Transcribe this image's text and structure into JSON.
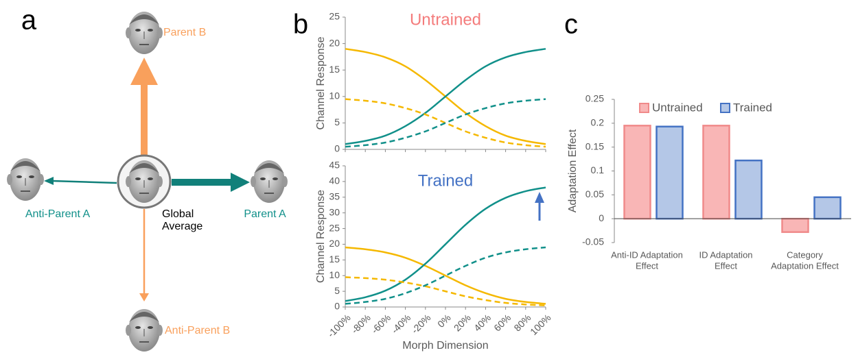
{
  "diagram": {
    "panel_label": "a",
    "nodes": [
      {
        "label": [
          "Parent B"
        ]
      },
      {
        "label": [
          "Anti-Parent A"
        ]
      },
      {
        "label": [
          "Global",
          "Average"
        ]
      },
      {
        "label": [
          "Parent A"
        ]
      },
      {
        "label": [
          "Anti-Parent B"
        ]
      }
    ]
  },
  "chart_data": [
    {
      "type": "line",
      "panel_label": "b",
      "title": "Untrained",
      "title_color": "#f47c7c",
      "ylabel": "Channel Response",
      "x": [
        -100,
        -80,
        -60,
        -40,
        -20,
        0,
        20,
        40,
        60,
        80,
        100
      ],
      "xlim": [
        -100,
        100
      ],
      "ylim": [
        0,
        25
      ],
      "yticks": [
        0,
        5,
        10,
        15,
        20,
        25
      ],
      "series": [
        {
          "color": "#f5b800",
          "dash": false,
          "values": [
            19.0,
            18.4,
            17.4,
            15.7,
            13.1,
            10.0,
            6.9,
            4.4,
            2.6,
            1.6,
            1.0
          ]
        },
        {
          "color": "#11908a",
          "dash": false,
          "values": [
            1.0,
            1.6,
            2.6,
            4.4,
            6.9,
            10.0,
            13.1,
            15.7,
            17.4,
            18.4,
            19.0
          ]
        },
        {
          "color": "#f5b800",
          "dash": true,
          "values": [
            9.5,
            9.2,
            8.7,
            7.8,
            6.6,
            5.0,
            3.4,
            2.2,
            1.3,
            0.8,
            0.5
          ]
        },
        {
          "color": "#11908a",
          "dash": true,
          "values": [
            0.5,
            0.8,
            1.3,
            2.2,
            3.4,
            5.0,
            6.6,
            7.8,
            8.7,
            9.2,
            9.5
          ]
        }
      ]
    },
    {
      "type": "line",
      "title": "Trained",
      "title_color": "#4472c4",
      "ylabel": "Channel Response",
      "xlabel": "Morph Dimension",
      "x": [
        -100,
        -80,
        -60,
        -40,
        -20,
        0,
        20,
        40,
        60,
        80,
        100
      ],
      "xlim": [
        -100,
        100
      ],
      "xticks": [
        {
          "value": -100,
          "label": "-100%"
        },
        {
          "value": -80,
          "label": "-80%"
        },
        {
          "value": -60,
          "label": "-60%"
        },
        {
          "value": -40,
          "label": "-40%"
        },
        {
          "value": -20,
          "label": "-20%"
        },
        {
          "value": 0,
          "label": "0%"
        },
        {
          "value": 20,
          "label": "20%"
        },
        {
          "value": 40,
          "label": "40%"
        },
        {
          "value": 60,
          "label": "60%"
        },
        {
          "value": 80,
          "label": "80%"
        },
        {
          "value": 100,
          "label": "100%"
        }
      ],
      "ylim": [
        0,
        45
      ],
      "yticks": [
        0,
        5,
        10,
        15,
        20,
        25,
        30,
        35,
        40,
        45
      ],
      "series": [
        {
          "color": "#f5b800",
          "dash": false,
          "values": [
            19.0,
            18.4,
            17.4,
            15.7,
            13.1,
            10.0,
            6.9,
            4.4,
            2.6,
            1.6,
            1.0
          ]
        },
        {
          "color": "#11908a",
          "dash": false,
          "values": [
            1.9,
            3.1,
            5.2,
            8.7,
            13.8,
            20.0,
            26.2,
            31.3,
            34.8,
            36.9,
            38.1
          ]
        },
        {
          "color": "#f5b800",
          "dash": true,
          "values": [
            9.5,
            9.2,
            8.7,
            7.8,
            6.6,
            5.0,
            3.4,
            2.2,
            1.3,
            0.8,
            0.5
          ]
        },
        {
          "color": "#11908a",
          "dash": true,
          "values": [
            1.0,
            1.6,
            2.6,
            4.4,
            6.9,
            10.0,
            13.1,
            15.7,
            17.4,
            18.4,
            19.0
          ]
        }
      ]
    },
    {
      "type": "bar",
      "panel_label": "c",
      "ylabel": "Adaptation Effect",
      "categories": [
        [
          "Anti-ID  Adaptation",
          "Effect"
        ],
        [
          "ID Adaptation",
          "Effect"
        ],
        [
          "Category",
          "Adaptation  Effect"
        ]
      ],
      "ylim": [
        -0.05,
        0.25
      ],
      "yticks": [
        -0.05,
        0,
        0.05,
        0.1,
        0.15,
        0.2,
        0.25
      ],
      "series": [
        {
          "name": "Untrained",
          "color": "#f9b6b6",
          "edge": "#f08a8a",
          "values": [
            0.195,
            0.195,
            -0.028
          ]
        },
        {
          "name": "Trained",
          "color": "#b4c7e7",
          "edge": "#4472c4",
          "values": [
            0.193,
            0.122,
            0.045
          ]
        }
      ]
    }
  ]
}
